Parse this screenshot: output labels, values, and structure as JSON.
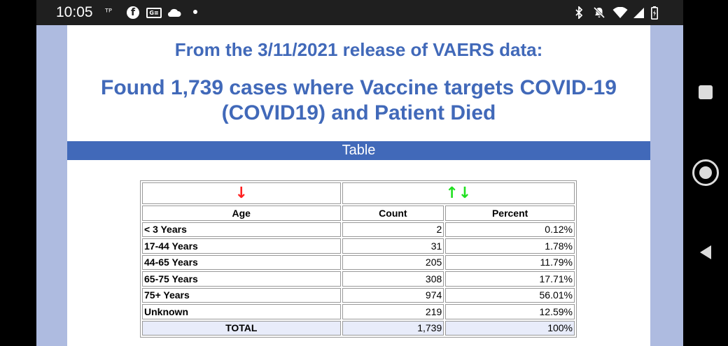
{
  "status_bar": {
    "time": "10:05",
    "icons": [
      "tp-icon",
      "facebook-icon",
      "google-news-icon",
      "cloud-icon",
      "notification-dot",
      "bluetooth-icon",
      "mute-icon",
      "wifi-icon",
      "signal-icon",
      "battery-icon"
    ]
  },
  "page": {
    "release_title": "From the 3/11/2021 release of VAERS data:",
    "main_title_line1": "Found 1,739 cases where Vaccine targets COVID-19",
    "main_title_line2": "(COVID19) and Patient Died",
    "section_label": "Table"
  },
  "table": {
    "sort_arrows": {
      "age": "↓",
      "count": "↑↓"
    },
    "headers": {
      "age": "Age",
      "count": "Count",
      "percent": "Percent"
    },
    "rows": [
      {
        "age": "< 3 Years",
        "count": "2",
        "percent": "0.12%"
      },
      {
        "age": "17-44 Years",
        "count": "31",
        "percent": "1.78%"
      },
      {
        "age": "44-65 Years",
        "count": "205",
        "percent": "11.79%"
      },
      {
        "age": "65-75 Years",
        "count": "308",
        "percent": "17.71%"
      },
      {
        "age": "75+ Years",
        "count": "974",
        "percent": "56.01%"
      },
      {
        "age": "Unknown",
        "count": "219",
        "percent": "12.59%"
      }
    ],
    "total": {
      "label": "TOTAL",
      "count": "1,739",
      "percent": "100%"
    }
  },
  "colors": {
    "heading_blue": "#4169b9",
    "side_background": "#aebbe0",
    "arrow_red": "#ff2020",
    "arrow_green": "#20e020"
  }
}
